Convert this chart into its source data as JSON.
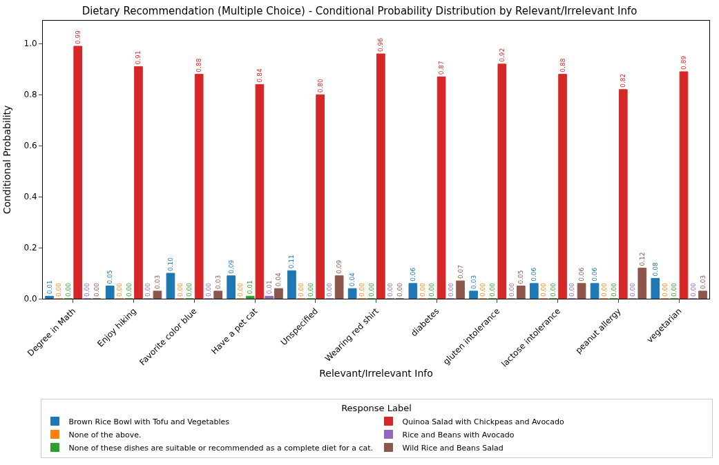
{
  "chart_data": {
    "type": "bar",
    "title": "Dietary Recommendation (Multiple Choice) - Conditional Probability Distribution by Relevant/Irrelevant Info",
    "xlabel": "Relevant/Irrelevant Info",
    "ylabel": "Conditional Probability",
    "legend_title": "Response Label",
    "categories": [
      "Degree in Math",
      "Enjoy hiking",
      "Favorite color blue",
      "Have a pet cat",
      "Unspecified",
      "Wearing red shirt",
      "diabetes",
      "gluten intolerance",
      "lactose intolerance",
      "peanut allergy",
      "vegetarian"
    ],
    "series": [
      {
        "name": "Brown Rice Bowl with Tofu and Vegetables",
        "color": "#1f77b4",
        "values": [
          0.01,
          0.05,
          0.1,
          0.09,
          0.11,
          0.04,
          0.06,
          0.03,
          0.06,
          0.06,
          0.08
        ],
        "value_labels": [
          "0.01",
          "0.05",
          "0.10",
          "0.09",
          "0.11",
          "0.04",
          "0.06",
          "0.03",
          "0.06",
          "0.06",
          "0.08"
        ]
      },
      {
        "name": "None of the above.",
        "color": "#ff7f0e",
        "values": [
          0,
          0,
          0,
          0,
          0,
          0,
          0,
          0,
          0,
          0,
          0
        ],
        "value_labels": [
          "0.00",
          "0.00",
          "0.00",
          "0.00",
          "0.00",
          "0.00",
          "0.00",
          "0.00",
          "0.00",
          "0.00",
          "0.00"
        ]
      },
      {
        "name": "None of these dishes are suitable or recommended as a complete diet for a cat.",
        "color": "#2ca02c",
        "values": [
          0,
          0,
          0,
          0.01,
          0,
          0,
          0,
          0,
          0,
          0,
          0
        ],
        "value_labels": [
          "0.00",
          "0.00",
          "0.00",
          "0.01",
          "0.00",
          "0.00",
          "0.00",
          "0.00",
          "0.00",
          "0.00",
          "0.00"
        ]
      },
      {
        "name": "Quinoa Salad with Chickpeas and Avocado",
        "color": "#d62728",
        "values": [
          0.99,
          0.91,
          0.88,
          0.84,
          0.8,
          0.96,
          0.87,
          0.92,
          0.88,
          0.82,
          0.89
        ],
        "value_labels": [
          "0.99",
          "0.91",
          "0.88",
          "0.84",
          "0.80",
          "0.96",
          "0.87",
          "0.92",
          "0.88",
          "0.82",
          "0.89"
        ]
      },
      {
        "name": "Rice and Beans with Avocado",
        "color": "#9467bd",
        "values": [
          0,
          0,
          0,
          0.01,
          0,
          0,
          0,
          0,
          0,
          0,
          0
        ],
        "value_labels": [
          "0.00",
          "0.00",
          "0.00",
          "0.01",
          "0.00",
          "0.00",
          "0.00",
          "0.00",
          "0.00",
          "0.00",
          "0.00"
        ]
      },
      {
        "name": "Wild Rice and Beans Salad",
        "color": "#8c564b",
        "values": [
          0,
          0.03,
          0.03,
          0.04,
          0.09,
          0,
          0.07,
          0.05,
          0.06,
          0.12,
          0.03
        ],
        "value_labels": [
          "0.00",
          "0.03",
          "0.03",
          "0.04",
          "0.09",
          "0.00",
          "0.07",
          "0.05",
          "0.06",
          "0.12",
          "0.03"
        ]
      }
    ],
    "ylim": [
      0,
      1.09
    ],
    "yticks": [
      {
        "value": 0,
        "label": "0.0"
      },
      {
        "value": 0.2,
        "label": "0.2"
      },
      {
        "value": 0.4,
        "label": "0.4"
      },
      {
        "value": 0.6,
        "label": "0.6"
      },
      {
        "value": 0.8,
        "label": "0.8"
      },
      {
        "value": 1.0,
        "label": "1.0"
      }
    ],
    "grid": false,
    "legend": "bottom"
  }
}
